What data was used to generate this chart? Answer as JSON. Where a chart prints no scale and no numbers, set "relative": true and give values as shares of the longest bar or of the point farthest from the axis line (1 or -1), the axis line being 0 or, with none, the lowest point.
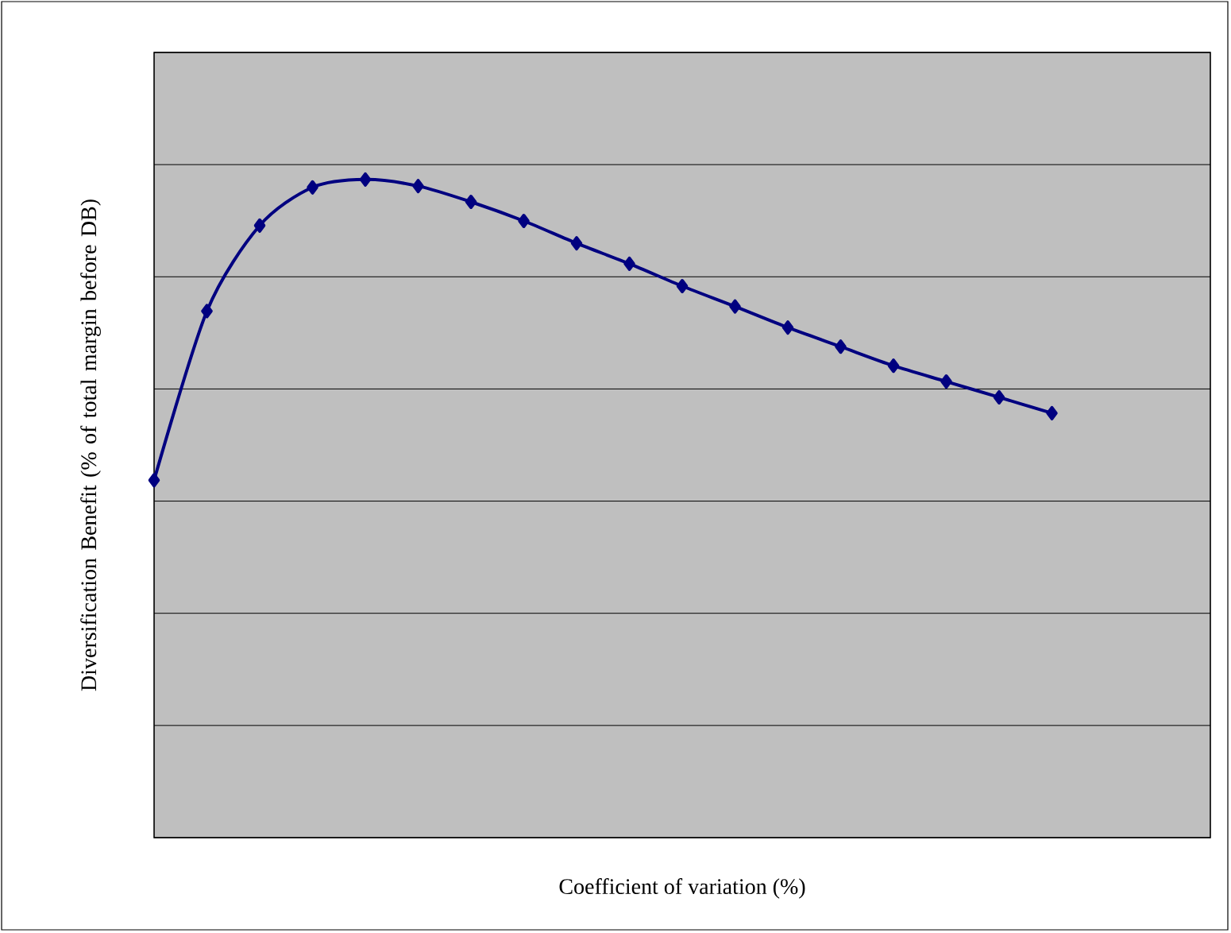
{
  "chart_data": {
    "type": "line",
    "xlabel": "Coefficient of variation (%)",
    "ylabel": "Diversification Benefit (% of total margin before DB)",
    "relative": true,
    "grid": "y",
    "marker": "diamond",
    "line_style": "solid",
    "categories": [
      null,
      null,
      null,
      null,
      null,
      null,
      null,
      null,
      null,
      null,
      null,
      null,
      null,
      null,
      null,
      null,
      null,
      null,
      null,
      null,
      null
    ],
    "series": [
      {
        "color": "#000080",
        "values": [
          0.543,
          0.8,
          0.93,
          0.988,
          1,
          0.99,
          0.966,
          0.937,
          0.903,
          0.872,
          0.838,
          0.807,
          0.775,
          0.746,
          0.717,
          0.693,
          0.669,
          0.645,
          null,
          null,
          null
        ]
      }
    ]
  }
}
